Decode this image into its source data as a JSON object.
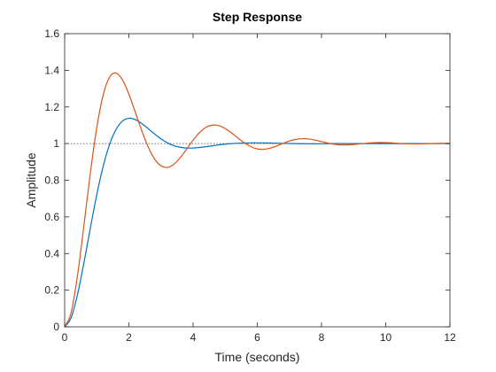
{
  "chart_data": {
    "type": "line",
    "title": "Step Response",
    "xlabel": "Time (seconds)",
    "ylabel": "Amplitude",
    "xlim": [
      0,
      12
    ],
    "ylim": [
      0,
      1.6
    ],
    "xticks": [
      0,
      2,
      4,
      6,
      8,
      10,
      12
    ],
    "yticks": [
      0,
      0.2,
      0.4,
      0.6,
      0.8,
      1,
      1.2,
      1.4,
      1.6
    ],
    "xtick_labels": [
      "0",
      "2",
      "4",
      "6",
      "8",
      "10",
      "12"
    ],
    "ytick_labels": [
      "0",
      "0.2",
      "0.4",
      "0.6",
      "0.8",
      "1",
      "1.2",
      "1.4",
      "1.6"
    ],
    "grid": false,
    "reference_line": {
      "y": 1,
      "style": "dotted",
      "color": "#404040"
    },
    "series": [
      {
        "color": "#0072BD",
        "x": [
          0,
          0.2,
          0.4,
          0.6,
          0.8,
          1.0,
          1.2,
          1.4,
          1.6,
          1.8,
          2.0,
          2.2,
          2.4,
          2.6,
          2.8,
          3.0,
          3.2,
          3.4,
          3.6,
          3.8,
          4.0,
          4.2,
          4.4,
          4.6,
          4.8,
          5.0,
          5.2,
          5.4,
          5.6,
          5.8,
          6.0,
          6.4,
          6.8,
          7.2,
          7.6,
          8.0,
          8.5,
          9.0,
          9.5,
          10.0,
          10.5,
          11.0,
          11.5,
          12.0
        ],
        "y": [
          0,
          0.049,
          0.176,
          0.349,
          0.539,
          0.721,
          0.876,
          0.996,
          1.077,
          1.123,
          1.138,
          1.131,
          1.11,
          1.082,
          1.053,
          1.026,
          1.004,
          0.989,
          0.98,
          0.976,
          0.976,
          0.979,
          0.983,
          0.988,
          0.993,
          0.997,
          1.0,
          1.002,
          1.003,
          1.004,
          1.004,
          1.003,
          1.001,
          1.0,
          0.999,
          0.999,
          1.0,
          1.0,
          1.0,
          1.0,
          1.0,
          1.0,
          1.0,
          1.0
        ]
      },
      {
        "color": "#D95319",
        "x": [
          0,
          0.2,
          0.4,
          0.6,
          0.8,
          1.0,
          1.2,
          1.4,
          1.6,
          1.8,
          2.0,
          2.2,
          2.4,
          2.6,
          2.8,
          3.0,
          3.2,
          3.4,
          3.6,
          3.8,
          4.0,
          4.2,
          4.4,
          4.6,
          4.8,
          5.0,
          5.2,
          5.4,
          5.6,
          5.8,
          6.0,
          6.2,
          6.4,
          6.6,
          6.8,
          7.0,
          7.2,
          7.4,
          7.6,
          7.8,
          8.0,
          8.2,
          8.4,
          8.6,
          8.8,
          9.0,
          9.4,
          9.8,
          10.2,
          10.6,
          11.0,
          11.5,
          12.0
        ],
        "y": [
          0,
          0.076,
          0.28,
          0.553,
          0.839,
          1.087,
          1.266,
          1.363,
          1.385,
          1.348,
          1.27,
          1.171,
          1.071,
          0.982,
          0.916,
          0.879,
          0.87,
          0.887,
          0.923,
          0.97,
          1.019,
          1.06,
          1.089,
          1.101,
          1.098,
          1.082,
          1.058,
          1.03,
          1.004,
          0.983,
          0.971,
          0.969,
          0.975,
          0.987,
          1.001,
          1.014,
          1.023,
          1.027,
          1.025,
          1.019,
          1.011,
          1.003,
          0.996,
          0.993,
          0.993,
          0.995,
          1.002,
          1.006,
          1.004,
          0.999,
          0.998,
          1.001,
          1.001
        ]
      }
    ]
  }
}
